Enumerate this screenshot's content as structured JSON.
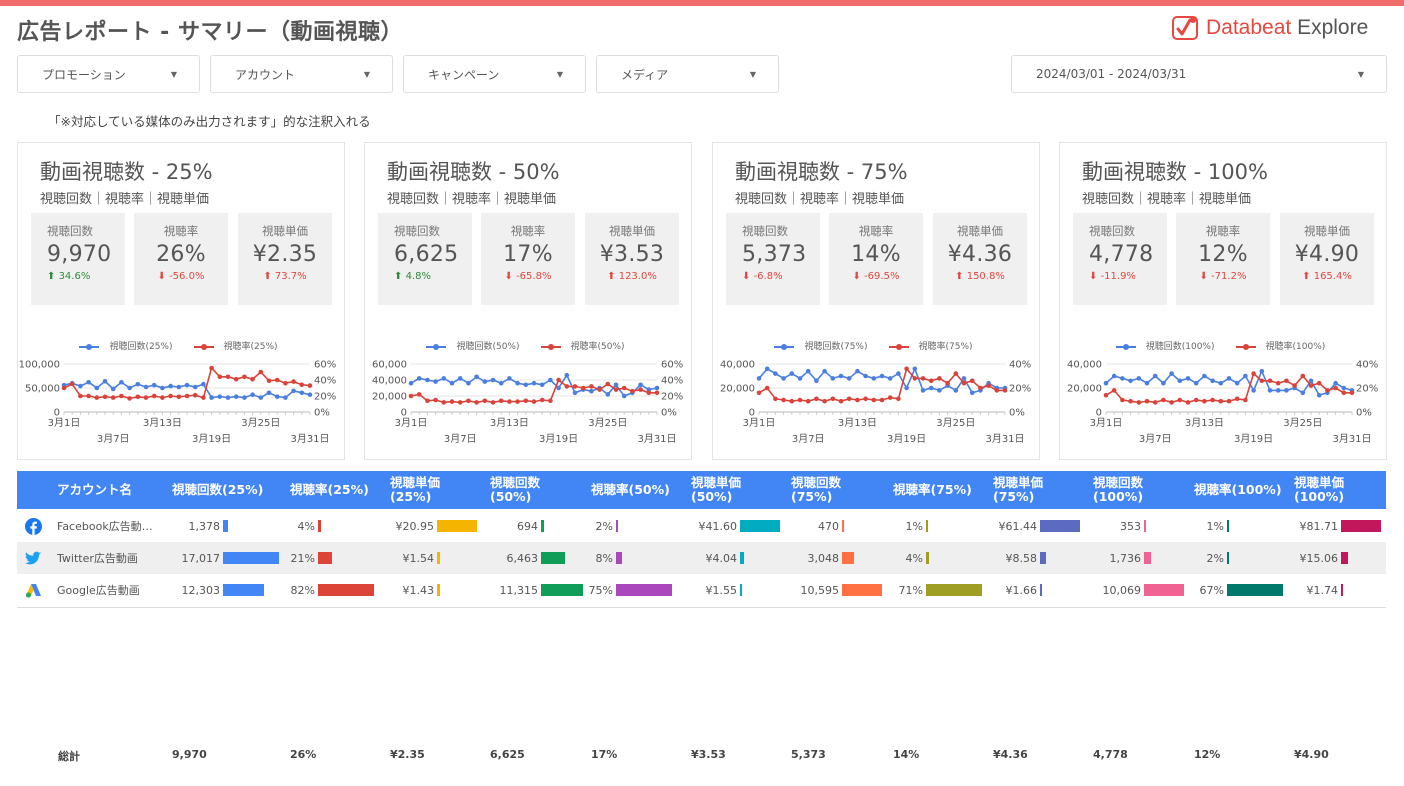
{
  "title": "広告レポート - サマリー（動画視聴）",
  "logo": {
    "brand": "Databeat",
    "product": "Explore"
  },
  "filters": [
    {
      "label": "プロモーション"
    },
    {
      "label": "アカウント"
    },
    {
      "label": "キャンペーン"
    },
    {
      "label": "メディア"
    }
  ],
  "date_range": "2024/03/01 - 2024/03/31",
  "note": "「※対応している媒体のみ出力されます」的な注釈入れる",
  "panels": [
    {
      "title": "動画視聴数 - 25%",
      "subtitle": "視聴回数｜視聴率｜視聴単価",
      "kpis": [
        {
          "label": "視聴回数",
          "value": "9,970",
          "delta": "34.6%",
          "dir": "up",
          "color": "#2e8b3b"
        },
        {
          "label": "視聴率",
          "value": "26%",
          "delta": "-56.0%",
          "dir": "down",
          "color": "#e0483f"
        },
        {
          "label": "視聴単価",
          "value": "¥2.35",
          "delta": "73.7%",
          "dir": "up",
          "color": "#e0483f"
        }
      ],
      "legend": [
        "視聴回数(25%)",
        "視聴率(25%)"
      ]
    },
    {
      "title": "動画視聴数 - 50%",
      "subtitle": "視聴回数｜視聴率｜視聴単価",
      "kpis": [
        {
          "label": "視聴回数",
          "value": "6,625",
          "delta": "4.8%",
          "dir": "up",
          "color": "#2e8b3b"
        },
        {
          "label": "視聴率",
          "value": "17%",
          "delta": "-65.8%",
          "dir": "down",
          "color": "#e0483f"
        },
        {
          "label": "視聴単価",
          "value": "¥3.53",
          "delta": "123.0%",
          "dir": "up",
          "color": "#e0483f"
        }
      ],
      "legend": [
        "視聴回数(50%)",
        "視聴率(50%)"
      ]
    },
    {
      "title": "動画視聴数 - 75%",
      "subtitle": "視聴回数｜視聴率｜視聴単価",
      "kpis": [
        {
          "label": "視聴回数",
          "value": "5,373",
          "delta": "-6.8%",
          "dir": "down",
          "color": "#e0483f"
        },
        {
          "label": "視聴率",
          "value": "14%",
          "delta": "-69.5%",
          "dir": "down",
          "color": "#e0483f"
        },
        {
          "label": "視聴単価",
          "value": "¥4.36",
          "delta": "150.8%",
          "dir": "up",
          "color": "#e0483f"
        }
      ],
      "legend": [
        "視聴回数(75%)",
        "視聴率(75%)"
      ]
    },
    {
      "title": "動画視聴数 - 100%",
      "subtitle": "視聴回数｜視聴率｜視聴単価",
      "kpis": [
        {
          "label": "視聴回数",
          "value": "4,778",
          "delta": "-11.9%",
          "dir": "down",
          "color": "#e0483f"
        },
        {
          "label": "視聴率",
          "value": "12%",
          "delta": "-71.2%",
          "dir": "down",
          "color": "#e0483f"
        },
        {
          "label": "視聴単価",
          "value": "¥4.90",
          "delta": "165.4%",
          "dir": "up",
          "color": "#e0483f"
        }
      ],
      "legend": [
        "視聴回数(100%)",
        "視聴率(100%)"
      ]
    }
  ],
  "chart_data": [
    {
      "type": "line",
      "x_ticks_top": [
        "3月1日",
        "3月13日",
        "3月25日"
      ],
      "x_ticks_bottom": [
        "3月7日",
        "3月19日",
        "3月31日"
      ],
      "y_left_ticks": [
        "100,000",
        "50,000",
        "0"
      ],
      "y_right_ticks": [
        "60%",
        "40%",
        "20%",
        "0%"
      ],
      "y_left_max": 100000,
      "y_right_max": 60,
      "series": [
        {
          "name": "視聴回数(25%)",
          "axis": "left",
          "color": "#4a7fe0",
          "values": [
            56000,
            60000,
            54000,
            62000,
            50000,
            64000,
            48000,
            62000,
            50000,
            58000,
            52000,
            56000,
            50000,
            54000,
            52000,
            56000,
            52000,
            58000,
            30000,
            32000,
            30000,
            32000,
            30000,
            36000,
            30000,
            40000,
            32000,
            30000,
            44000,
            40000,
            36000
          ]
        },
        {
          "name": "視聴率(25%)",
          "axis": "right",
          "color": "#d9433a",
          "values": [
            30,
            35,
            20,
            20,
            18,
            19,
            18,
            20,
            17,
            19,
            18,
            20,
            18,
            20,
            19,
            20,
            21,
            18,
            55,
            44,
            44,
            41,
            44,
            41,
            50,
            39,
            40,
            36,
            38,
            34,
            33
          ]
        }
      ]
    },
    {
      "type": "line",
      "x_ticks_top": [
        "3月1日",
        "3月13日",
        "3月25日"
      ],
      "x_ticks_bottom": [
        "3月7日",
        "3月19日",
        "3月31日"
      ],
      "y_left_ticks": [
        "60,000",
        "40,000",
        "20,000",
        "0"
      ],
      "y_right_ticks": [
        "60%",
        "40%",
        "20%",
        "0%"
      ],
      "y_left_max": 60000,
      "y_right_max": 60,
      "series": [
        {
          "name": "視聴回数(50%)",
          "axis": "left",
          "color": "#4a7fe0",
          "values": [
            36000,
            42000,
            40000,
            38000,
            42000,
            36000,
            42000,
            36000,
            44000,
            38000,
            40000,
            36000,
            42000,
            36000,
            34000,
            36000,
            34000,
            40000,
            30000,
            46000,
            24000,
            28000,
            26000,
            30000,
            22000,
            34000,
            20000,
            24000,
            34000,
            28000,
            30000
          ]
        },
        {
          "name": "視聴率(50%)",
          "axis": "right",
          "color": "#d9433a",
          "values": [
            20,
            22,
            14,
            15,
            12,
            13,
            12,
            14,
            12,
            14,
            12,
            14,
            13,
            13,
            14,
            13,
            15,
            14,
            40,
            32,
            32,
            30,
            32,
            28,
            35,
            28,
            30,
            26,
            28,
            24,
            24
          ]
        }
      ]
    },
    {
      "type": "line",
      "x_ticks_top": [
        "3月1日",
        "3月13日",
        "3月25日"
      ],
      "x_ticks_bottom": [
        "3月7日",
        "3月19日",
        "3月31日"
      ],
      "y_left_ticks": [
        "40,000",
        "20,000",
        "0"
      ],
      "y_right_ticks": [
        "40%",
        "20%",
        "0%"
      ],
      "y_left_max": 40000,
      "y_right_max": 40,
      "series": [
        {
          "name": "視聴回数(75%)",
          "axis": "left",
          "color": "#4a7fe0",
          "values": [
            28000,
            36000,
            32000,
            28000,
            32000,
            28000,
            34000,
            26000,
            34000,
            28000,
            30000,
            28000,
            34000,
            30000,
            28000,
            30000,
            28000,
            32000,
            20000,
            36000,
            18000,
            20000,
            18000,
            22000,
            18000,
            28000,
            16000,
            18000,
            24000,
            20000,
            20000
          ]
        },
        {
          "name": "視聴率(75%)",
          "axis": "right",
          "color": "#d9433a",
          "values": [
            16,
            20,
            11,
            10,
            9,
            10,
            9,
            11,
            9,
            11,
            9,
            11,
            10,
            11,
            10,
            10,
            12,
            11,
            36,
            28,
            28,
            26,
            28,
            24,
            32,
            24,
            26,
            20,
            22,
            18,
            18
          ]
        }
      ]
    },
    {
      "type": "line",
      "x_ticks_top": [
        "3月1日",
        "3月13日",
        "3月25日"
      ],
      "x_ticks_bottom": [
        "3月7日",
        "3月19日",
        "3月31日"
      ],
      "y_left_ticks": [
        "40,000",
        "20,000",
        "0"
      ],
      "y_right_ticks": [
        "40%",
        "20%",
        "0%"
      ],
      "y_left_max": 40000,
      "y_right_max": 40,
      "series": [
        {
          "name": "視聴回数(100%)",
          "axis": "left",
          "color": "#4a7fe0",
          "values": [
            24000,
            30000,
            28000,
            26000,
            28000,
            24000,
            30000,
            24000,
            32000,
            26000,
            28000,
            24000,
            30000,
            26000,
            24000,
            28000,
            24000,
            30000,
            18000,
            34000,
            18000,
            18000,
            18000,
            20000,
            16000,
            26000,
            14000,
            16000,
            24000,
            20000,
            18000
          ]
        },
        {
          "name": "視聴率(100%)",
          "axis": "right",
          "color": "#d9433a",
          "values": [
            14,
            18,
            10,
            9,
            8,
            9,
            8,
            10,
            8,
            10,
            8,
            10,
            9,
            10,
            9,
            9,
            11,
            10,
            32,
            26,
            26,
            24,
            26,
            22,
            30,
            22,
            24,
            18,
            20,
            16,
            16
          ]
        }
      ]
    }
  ],
  "table": {
    "headers": [
      "アカウント名",
      "視聴回数(25%)",
      "視聴率(25%)",
      "視聴単価\n(25%)",
      "視聴回数\n(50%)",
      "視聴率(50%)",
      "視聴単価\n(50%)",
      "視聴回数\n(75%)",
      "視聴率(75%)",
      "視聴単価\n(75%)",
      "視聴回数\n(100%)",
      "視聴率(100%)",
      "視聴単価\n(100%)"
    ],
    "bar_colors": [
      "#4285f4",
      "#db4437",
      "#f4b400",
      "#0f9d58",
      "#ab47bc",
      "#00acc1",
      "#ff7043",
      "#9e9d24",
      "#5c6bc0",
      "#f06292",
      "#00796b",
      "#c2185b"
    ],
    "bar_max": [
      17017,
      82,
      20.95,
      11315,
      75,
      41.6,
      10595,
      71,
      61.44,
      10069,
      67,
      81.71
    ],
    "rows": [
      {
        "icon": "facebook-icon",
        "name": "Facebook広告動…",
        "cells": [
          "1,378",
          "4%",
          "¥20.95",
          "694",
          "2%",
          "¥41.60",
          "470",
          "1%",
          "¥61.44",
          "353",
          "1%",
          "¥81.71"
        ],
        "values": [
          1378,
          4,
          20.95,
          694,
          2,
          41.6,
          470,
          1,
          61.44,
          353,
          1,
          81.71
        ]
      },
      {
        "icon": "twitter-icon",
        "name": "Twitter広告動画",
        "cells": [
          "17,017",
          "21%",
          "¥1.54",
          "6,463",
          "8%",
          "¥4.04",
          "3,048",
          "4%",
          "¥8.58",
          "1,736",
          "2%",
          "¥15.06"
        ],
        "values": [
          17017,
          21,
          1.54,
          6463,
          8,
          4.04,
          3048,
          4,
          8.58,
          1736,
          2,
          15.06
        ]
      },
      {
        "icon": "google-ads-icon",
        "name": "Google広告動画",
        "cells": [
          "12,303",
          "82%",
          "¥1.43",
          "11,315",
          "75%",
          "¥1.55",
          "10,595",
          "71%",
          "¥1.66",
          "10,069",
          "67%",
          "¥1.74"
        ],
        "values": [
          12303,
          82,
          1.43,
          11315,
          75,
          1.55,
          10595,
          71,
          1.66,
          10069,
          67,
          1.74
        ]
      }
    ],
    "totals_label": "総計",
    "totals": [
      "9,970",
      "26%",
      "¥2.35",
      "6,625",
      "17%",
      "¥3.53",
      "5,373",
      "14%",
      "¥4.36",
      "4,778",
      "12%",
      "¥4.90"
    ]
  }
}
